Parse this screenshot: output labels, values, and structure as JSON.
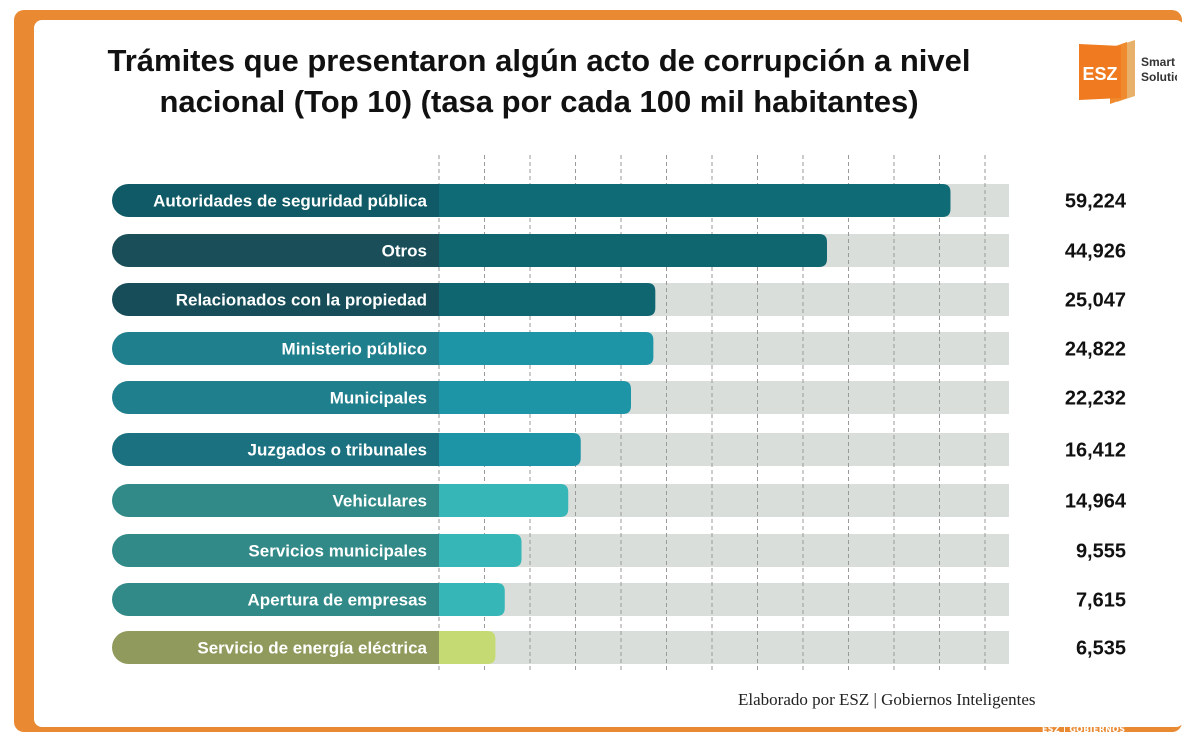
{
  "chart_data": {
    "type": "bar",
    "orientation": "horizontal",
    "title": "Trámites que presentaron algún acto de corrupción a nivel nacional (Top 10) (tasa por cada 100 mil habitantes)",
    "title_lines": [
      "Trámites que presentaron algún acto de corrupción a nivel",
      "nacional (Top 10) (tasa por cada 100 mil habitantes)"
    ],
    "categories": [
      "Autoridades de seguridad pública",
      "Otros",
      "Relacionados con la propiedad",
      "Ministerio público",
      "Municipales",
      "Juzgados o tribunales",
      "Vehiculares",
      "Servicios municipales",
      "Apertura de empresas",
      "Servicio de energía eléctrica"
    ],
    "values": [
      59224,
      44926,
      25047,
      24822,
      22232,
      16412,
      14964,
      9555,
      7615,
      6535
    ],
    "value_labels": [
      "59,224",
      "44,926",
      "25,047",
      "24,822",
      "22,232",
      "16,412",
      "14,964",
      "9,555",
      "7,615",
      "6,535"
    ],
    "label_colors": [
      "#0f5a66",
      "#1a4f59",
      "#164d58",
      "#1f7f8c",
      "#1f7f8c",
      "#1b7180",
      "#318a88",
      "#318a88",
      "#318a88",
      "#8f9a5c"
    ],
    "bar_colors": [
      "#0f6b75",
      "#10666f",
      "#106670",
      "#1e95a6",
      "#1e95a6",
      "#1e95a6",
      "#37b6b7",
      "#37b6b7",
      "#37b6b7",
      "#c6da74"
    ],
    "track_color": "#dadedb",
    "grid": true,
    "xlim": [
      0,
      66000
    ],
    "xlabel": "",
    "ylabel": ""
  },
  "logo": {
    "mark": "ESZ",
    "line1": "Smart",
    "line2": "Solutions"
  },
  "footer": {
    "credit": "Elaborado por ESZ | Gobiernos Inteligentes",
    "watermark": "ESZ | GOBIERNOS INTELIGENTES"
  },
  "colors": {
    "frame": "#e98a33",
    "text": "#111111"
  }
}
